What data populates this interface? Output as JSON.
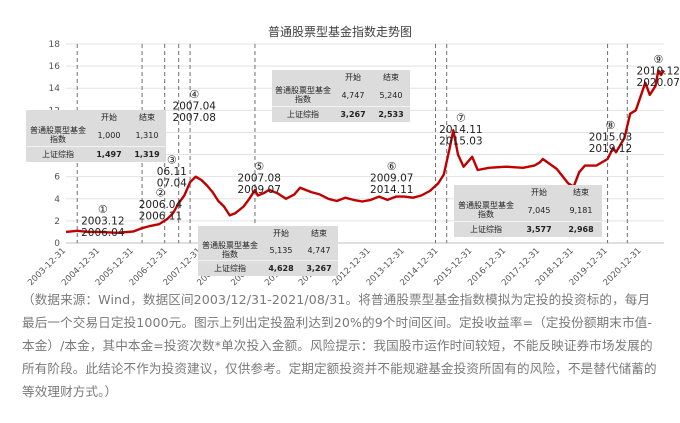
{
  "chart_data": {
    "type": "line",
    "title": "普通股票型基金指数走势图",
    "ylim": [
      0,
      18
    ],
    "yticks": [
      0,
      2,
      4,
      6,
      8,
      10,
      12,
      14,
      16,
      18
    ],
    "x_start": "2003-12-31",
    "x_end": "2021-08-31",
    "xtick_labels": [
      "2003-12-31",
      "2004-12-31",
      "2005-12-31",
      "2006-12-31",
      "2007-12-31",
      "2008-12-31",
      "2009-12-31",
      "2010-12-31",
      "2011-12-31",
      "2012-12-31",
      "2013-12-31",
      "2014-12-31",
      "2015-12-31",
      "2016-12-31",
      "2017-12-31",
      "2018-12-31",
      "2019-12-31",
      "2020-12-31"
    ],
    "series": [
      {
        "color": "#c00000",
        "points": [
          [
            "2003-12-31",
            1.0
          ],
          [
            "2004-04-30",
            1.1
          ],
          [
            "2004-08-31",
            1.0
          ],
          [
            "2004-12-31",
            1.0
          ],
          [
            "2005-06-30",
            0.92
          ],
          [
            "2005-10-31",
            1.0
          ],
          [
            "2005-12-31",
            1.05
          ],
          [
            "2006-03-31",
            1.35
          ],
          [
            "2006-06-30",
            1.55
          ],
          [
            "2006-09-30",
            1.7
          ],
          [
            "2006-12-31",
            2.2
          ],
          [
            "2007-02-28",
            2.7
          ],
          [
            "2007-04-30",
            3.6
          ],
          [
            "2007-06-30",
            4.3
          ],
          [
            "2007-08-31",
            5.5
          ],
          [
            "2007-10-31",
            6.0
          ],
          [
            "2007-12-31",
            5.7
          ],
          [
            "2008-02-29",
            5.2
          ],
          [
            "2008-04-30",
            4.6
          ],
          [
            "2008-06-30",
            3.8
          ],
          [
            "2008-08-31",
            3.3
          ],
          [
            "2008-10-31",
            2.5
          ],
          [
            "2008-12-31",
            2.7
          ],
          [
            "2009-03-31",
            3.3
          ],
          [
            "2009-05-31",
            4.0
          ],
          [
            "2009-07-31",
            4.8
          ],
          [
            "2009-08-31",
            4.3
          ],
          [
            "2009-10-31",
            4.5
          ],
          [
            "2009-12-31",
            4.8
          ],
          [
            "2010-03-31",
            4.5
          ],
          [
            "2010-06-30",
            4.0
          ],
          [
            "2010-09-30",
            4.4
          ],
          [
            "2010-11-30",
            5.0
          ],
          [
            "2011-03-31",
            4.6
          ],
          [
            "2011-06-30",
            4.4
          ],
          [
            "2011-09-30",
            4.0
          ],
          [
            "2011-12-31",
            3.8
          ],
          [
            "2012-03-31",
            4.1
          ],
          [
            "2012-06-30",
            3.9
          ],
          [
            "2012-09-30",
            3.75
          ],
          [
            "2012-12-31",
            3.9
          ],
          [
            "2013-03-31",
            4.2
          ],
          [
            "2013-06-30",
            3.9
          ],
          [
            "2013-09-30",
            4.2
          ],
          [
            "2013-12-31",
            4.2
          ],
          [
            "2014-03-31",
            4.1
          ],
          [
            "2014-06-30",
            4.3
          ],
          [
            "2014-09-30",
            4.7
          ],
          [
            "2014-12-31",
            5.4
          ],
          [
            "2015-02-28",
            6.2
          ],
          [
            "2015-04-30",
            8.5
          ],
          [
            "2015-06-10",
            10.2
          ],
          [
            "2015-07-31",
            8.0
          ],
          [
            "2015-09-30",
            6.9
          ],
          [
            "2015-12-31",
            7.8
          ],
          [
            "2016-02-29",
            6.6
          ],
          [
            "2016-06-30",
            6.8
          ],
          [
            "2016-12-31",
            6.9
          ],
          [
            "2017-06-30",
            6.8
          ],
          [
            "2017-10-31",
            7.0
          ],
          [
            "2017-12-31",
            7.3
          ],
          [
            "2018-01-31",
            7.6
          ],
          [
            "2018-06-30",
            6.7
          ],
          [
            "2018-10-31",
            5.4
          ],
          [
            "2018-12-31",
            5.1
          ],
          [
            "2019-02-28",
            6.4
          ],
          [
            "2019-04-30",
            7.0
          ],
          [
            "2019-08-31",
            7.0
          ],
          [
            "2019-12-31",
            7.6
          ],
          [
            "2020-02-29",
            8.6
          ],
          [
            "2020-03-31",
            8.2
          ],
          [
            "2020-06-30",
            9.5
          ],
          [
            "2020-08-31",
            11.7
          ],
          [
            "2020-10-31",
            12.0
          ],
          [
            "2020-12-31",
            13.5
          ],
          [
            "2021-02-10",
            14.5
          ],
          [
            "2021-03-31",
            13.4
          ],
          [
            "2021-05-31",
            14.2
          ],
          [
            "2021-06-30",
            15.6
          ],
          [
            "2021-07-31",
            15.2
          ],
          [
            "2021-08-31",
            15.6
          ]
        ]
      }
    ],
    "vlines": [
      "2004-04-30",
      "2006-03-31",
      "2006-11-30",
      "2007-04-30",
      "2007-08-31",
      "2009-07-31",
      "2014-11-30",
      "2015-03-31",
      "2019-12-31",
      "2020-07-31"
    ],
    "period_labels": [
      {
        "num": "①",
        "lines": [
          "2003.12",
          "2006.04"
        ],
        "x": "2005-01-31",
        "y": 2.7
      },
      {
        "num": "②",
        "lines": [
          "2006.04",
          "2006.11"
        ],
        "x": "2006-10-15",
        "y": 4.2
      },
      {
        "num": "③",
        "lines": [
          "06.11",
          "07.04"
        ],
        "x": "2007-02-15",
        "y": 7.2
      },
      {
        "num": "④",
        "lines": [
          "2007.04",
          "2007.08"
        ],
        "x": "2007-10-15",
        "y": 13.1
      },
      {
        "num": "⑤",
        "lines": [
          "2007.08",
          "2009.07"
        ],
        "x": "2009-09-15",
        "y": 6.6
      },
      {
        "num": "⑥",
        "lines": [
          "2009.07",
          "2014.11"
        ],
        "x": "2013-08-15",
        "y": 6.6
      },
      {
        "num": "⑦",
        "lines": [
          "2014.11",
          "2015.03"
        ],
        "x": "2015-08-31",
        "y": 11.0
      },
      {
        "num": "⑧",
        "lines": [
          "2015.03",
          "2019.12"
        ],
        "x": "2020-01-31",
        "y": 10.3
      },
      {
        "num": "⑨",
        "lines": [
          "2019.12",
          "2020.07"
        ],
        "x": "2021-06-30",
        "y": 16.3
      }
    ]
  },
  "tables": {
    "t1": {
      "hdr": [
        "开始",
        "结束"
      ],
      "fund_label": "普通股票型基金指数",
      "fund": [
        "1,000",
        "1,310"
      ],
      "sh_label": "上证综指",
      "sh": [
        "1,497",
        "1,319"
      ]
    },
    "t2": {
      "hdr": [
        "开始",
        "结束"
      ],
      "fund_label": "普通股票型基金指数",
      "fund": [
        "4,747",
        "5,240"
      ],
      "sh_label": "上证综指",
      "sh": [
        "3,267",
        "2,533"
      ]
    },
    "t3": {
      "hdr": [
        "开始",
        "结束"
      ],
      "fund_label": "普通股票型基金指数",
      "fund": [
        "5,135",
        "4,747"
      ],
      "sh_label": "上证综指",
      "sh": [
        "4,628",
        "3,267"
      ]
    },
    "t4": {
      "hdr": [
        "开始",
        "结束"
      ],
      "fund_label": "普通股票型基金指数",
      "fund": [
        "7,045",
        "9,181"
      ],
      "sh_label": "上证综指",
      "sh": [
        "3,577",
        "2,968"
      ]
    }
  },
  "note": "（数据来源：Wind，数据区间2003/12/31-2021/08/31。将普通股票型基金指数模拟为定投的投资标的，每月最后一个交易日定投1000元。图示上列出定投盈利达到20%的9个时间区间。定投收益率=（定投份额期末市值-本金）/本金，其中本金=投资次数*单次投入金额。风险提示：我国股市运作时间较短，不能反映证券市场发展的所有阶段。此结论不作为投资建议，仅供参考。定期定额投资并不能规避基金投资所固有的风险，不是替代储蓄的等效理财方式。）"
}
